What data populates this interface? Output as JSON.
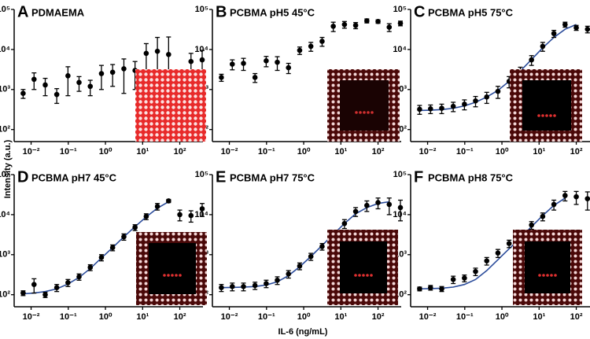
{
  "y_label": "Intensity (a.u.)",
  "x_label": "IL-6 (ng/mL)",
  "chart_data": [
    {
      "type": "scatter",
      "label": "A",
      "title": "PDMAEMA",
      "log_x": true,
      "log_y": true,
      "color": "#000000",
      "x": [
        0.0061,
        0.012,
        0.024,
        0.049,
        0.098,
        0.195,
        0.39,
        0.78,
        1.56,
        3.13,
        6.25,
        12.5,
        25,
        50,
        100,
        200,
        400
      ],
      "values": [
        800,
        1800,
        1300,
        750,
        2200,
        1500,
        1200,
        2500,
        2700,
        3300,
        3000,
        8000,
        9000,
        7500,
        2000,
        5000,
        5500
      ],
      "errors": [
        200,
        800,
        600,
        300,
        1500,
        600,
        500,
        1500,
        1500,
        2500,
        2000,
        6000,
        11000,
        13000,
        500,
        3000,
        4000
      ],
      "xlim": [
        0.0035,
        420
      ],
      "ylim": [
        50,
        100000
      ],
      "xticks": [
        {
          "value": 0.01,
          "label": "10⁻²"
        },
        {
          "value": 0.1,
          "label": "10⁻¹"
        },
        {
          "value": 1,
          "label": "10⁰"
        },
        {
          "value": 10,
          "label": "10¹"
        },
        {
          "value": 100,
          "label": "10²"
        }
      ],
      "yticks": [
        {
          "value": 100,
          "label": "10²"
        },
        {
          "value": 1000,
          "label": "10³"
        },
        {
          "value": 10000,
          "label": "10⁴"
        },
        {
          "value": 100000,
          "label": "10⁵"
        }
      ]
    },
    {
      "type": "scatter",
      "label": "B",
      "title": "PCBMA pH5 45°C",
      "log_x": true,
      "log_y": true,
      "color": "#000000",
      "x": [
        0.0061,
        0.012,
        0.024,
        0.049,
        0.098,
        0.195,
        0.39,
        0.78,
        1.56,
        3.13,
        6.25,
        12.5,
        25,
        50,
        100,
        200,
        400
      ],
      "values": [
        2000,
        4300,
        4500,
        2000,
        5200,
        4800,
        3500,
        9500,
        12000,
        16000,
        38000,
        42000,
        40000,
        52000,
        50000,
        36000,
        45000
      ],
      "errors": [
        400,
        1200,
        1500,
        500,
        1500,
        1800,
        1000,
        2000,
        3000,
        4000,
        10000,
        8000,
        7000,
        6000,
        5000,
        8000,
        6000
      ],
      "xlim": [
        0.0035,
        420
      ],
      "ylim": [
        50,
        100000
      ],
      "xticks": [
        {
          "value": 0.01,
          "label": "10⁻²"
        },
        {
          "value": 0.1,
          "label": "10⁻¹"
        },
        {
          "value": 1,
          "label": "10⁰"
        },
        {
          "value": 10,
          "label": "10¹"
        },
        {
          "value": 100,
          "label": "10²"
        }
      ],
      "yticks": [
        {
          "value": 100,
          "label": "10²"
        },
        {
          "value": 1000,
          "label": "10³"
        },
        {
          "value": 10000,
          "label": "10⁴"
        },
        {
          "value": 100000,
          "label": "10⁵"
        }
      ]
    },
    {
      "type": "scatter",
      "label": "C",
      "title": "PCBMA pH5 75°C",
      "log_x": true,
      "log_y": true,
      "color": "#000000",
      "fit_color": "#2b4c9b",
      "x": [
        0.0061,
        0.012,
        0.024,
        0.049,
        0.098,
        0.195,
        0.39,
        0.78,
        1.56,
        3.13,
        6.25,
        12.5,
        25,
        50,
        100,
        200,
        400
      ],
      "values": [
        320,
        330,
        340,
        380,
        430,
        520,
        650,
        900,
        1600,
        2800,
        5500,
        12000,
        25000,
        42000,
        35000,
        32000,
        27000
      ],
      "errors": [
        80,
        80,
        90,
        100,
        120,
        150,
        200,
        300,
        500,
        800,
        1500,
        3000,
        5000,
        6000,
        5000,
        6000,
        5000
      ],
      "fit_values": [
        300,
        305,
        315,
        340,
        390,
        480,
        650,
        950,
        1600,
        2900,
        5600,
        11000,
        20000,
        32000,
        42000,
        null,
        null
      ],
      "xlim": [
        0.0035,
        420
      ],
      "ylim": [
        50,
        100000
      ],
      "xticks": [
        {
          "value": 0.01,
          "label": "10⁻²"
        },
        {
          "value": 0.1,
          "label": "10⁻¹"
        },
        {
          "value": 1,
          "label": "10⁰"
        },
        {
          "value": 10,
          "label": "10¹"
        },
        {
          "value": 100,
          "label": "10²"
        }
      ],
      "yticks": [
        {
          "value": 100,
          "label": "10²"
        },
        {
          "value": 1000,
          "label": "10³"
        },
        {
          "value": 10000,
          "label": "10⁴"
        },
        {
          "value": 100000,
          "label": "10⁵"
        }
      ]
    },
    {
      "type": "scatter",
      "label": "D",
      "title": "PCBMA pH7 45°C",
      "log_x": true,
      "log_y": true,
      "color": "#000000",
      "fit_color": "#2b4c9b",
      "x": [
        0.0061,
        0.012,
        0.024,
        0.049,
        0.098,
        0.195,
        0.39,
        0.78,
        1.56,
        3.13,
        6.25,
        12.5,
        25,
        50,
        100,
        200,
        400
      ],
      "values": [
        110,
        180,
        100,
        150,
        200,
        280,
        480,
        850,
        1500,
        2800,
        4800,
        9000,
        16000,
        22000,
        10000,
        9500,
        14000
      ],
      "errors": [
        15,
        70,
        15,
        30,
        40,
        50,
        80,
        150,
        250,
        500,
        800,
        1500,
        3000,
        2000,
        3000,
        3000,
        5000
      ],
      "fit_values": [
        105,
        110,
        120,
        140,
        185,
        270,
        450,
        830,
        1500,
        2800,
        5000,
        8800,
        14500,
        21000,
        null,
        null,
        null
      ],
      "xlim": [
        0.0035,
        420
      ],
      "ylim": [
        50,
        100000
      ],
      "xticks": [
        {
          "value": 0.01,
          "label": "10⁻²"
        },
        {
          "value": 0.1,
          "label": "10⁻¹"
        },
        {
          "value": 1,
          "label": "10⁰"
        },
        {
          "value": 10,
          "label": "10¹"
        },
        {
          "value": 100,
          "label": "10²"
        }
      ],
      "yticks": [
        {
          "value": 100,
          "label": "10²"
        },
        {
          "value": 1000,
          "label": "10³"
        },
        {
          "value": 10000,
          "label": "10⁴"
        },
        {
          "value": 100000,
          "label": "10⁵"
        }
      ]
    },
    {
      "type": "scatter",
      "label": "E",
      "title": "PCBMA pH7 75°C",
      "log_x": true,
      "log_y": true,
      "color": "#000000",
      "fit_color": "#2b4c9b",
      "x": [
        0.0061,
        0.012,
        0.024,
        0.049,
        0.098,
        0.195,
        0.39,
        0.78,
        1.56,
        3.13,
        6.25,
        12.5,
        25,
        50,
        100,
        200,
        400
      ],
      "values": [
        150,
        160,
        160,
        170,
        190,
        230,
        330,
        520,
        900,
        1600,
        3200,
        6000,
        12000,
        17000,
        20000,
        18000,
        15000
      ],
      "errors": [
        30,
        35,
        35,
        35,
        40,
        50,
        70,
        100,
        180,
        300,
        600,
        1500,
        3000,
        5000,
        6000,
        8000,
        8000
      ],
      "fit_values": [
        150,
        152,
        155,
        160,
        175,
        210,
        300,
        500,
        900,
        1700,
        3200,
        6000,
        10500,
        15000,
        19000,
        21000,
        null
      ],
      "xlim": [
        0.0035,
        420
      ],
      "ylim": [
        50,
        100000
      ],
      "xticks": [
        {
          "value": 0.01,
          "label": "10⁻²"
        },
        {
          "value": 0.1,
          "label": "10⁻¹"
        },
        {
          "value": 1,
          "label": "10⁰"
        },
        {
          "value": 10,
          "label": "10¹"
        },
        {
          "value": 100,
          "label": "10²"
        }
      ],
      "yticks": [
        {
          "value": 100,
          "label": "10²"
        },
        {
          "value": 1000,
          "label": "10³"
        },
        {
          "value": 10000,
          "label": "10⁴"
        },
        {
          "value": 100000,
          "label": "10⁵"
        }
      ]
    },
    {
      "type": "scatter",
      "label": "F",
      "title": "PCBMA pH8 75°C",
      "log_x": true,
      "log_y": true,
      "color": "#000000",
      "fit_color": "#2b4c9b",
      "x": [
        0.0061,
        0.012,
        0.024,
        0.049,
        0.098,
        0.195,
        0.39,
        0.78,
        1.56,
        3.13,
        6.25,
        12.5,
        25,
        50,
        100,
        200,
        400
      ],
      "values": [
        140,
        150,
        140,
        240,
        260,
        380,
        700,
        1100,
        1900,
        2400,
        5500,
        9000,
        18000,
        30000,
        28000,
        25000,
        20000
      ],
      "errors": [
        15,
        20,
        20,
        50,
        50,
        80,
        150,
        250,
        400,
        600,
        1200,
        2000,
        5000,
        8000,
        10000,
        12000,
        10000
      ],
      "fit_values": [
        140,
        142,
        145,
        155,
        180,
        240,
        400,
        750,
        1400,
        2600,
        5000,
        9500,
        17000,
        26000,
        null,
        null,
        null
      ],
      "xlim": [
        0.0035,
        420
      ],
      "ylim": [
        50,
        100000
      ],
      "xticks": [
        {
          "value": 0.01,
          "label": "10⁻²"
        },
        {
          "value": 0.1,
          "label": "10⁻¹"
        },
        {
          "value": 1,
          "label": "10⁰"
        },
        {
          "value": 10,
          "label": "10¹"
        },
        {
          "value": 100,
          "label": "10²"
        }
      ],
      "yticks": [
        {
          "value": 100,
          "label": "10²"
        },
        {
          "value": 1000,
          "label": "10³"
        },
        {
          "value": 10000,
          "label": "10⁴"
        },
        {
          "value": 100000,
          "label": "10⁵"
        }
      ]
    }
  ]
}
